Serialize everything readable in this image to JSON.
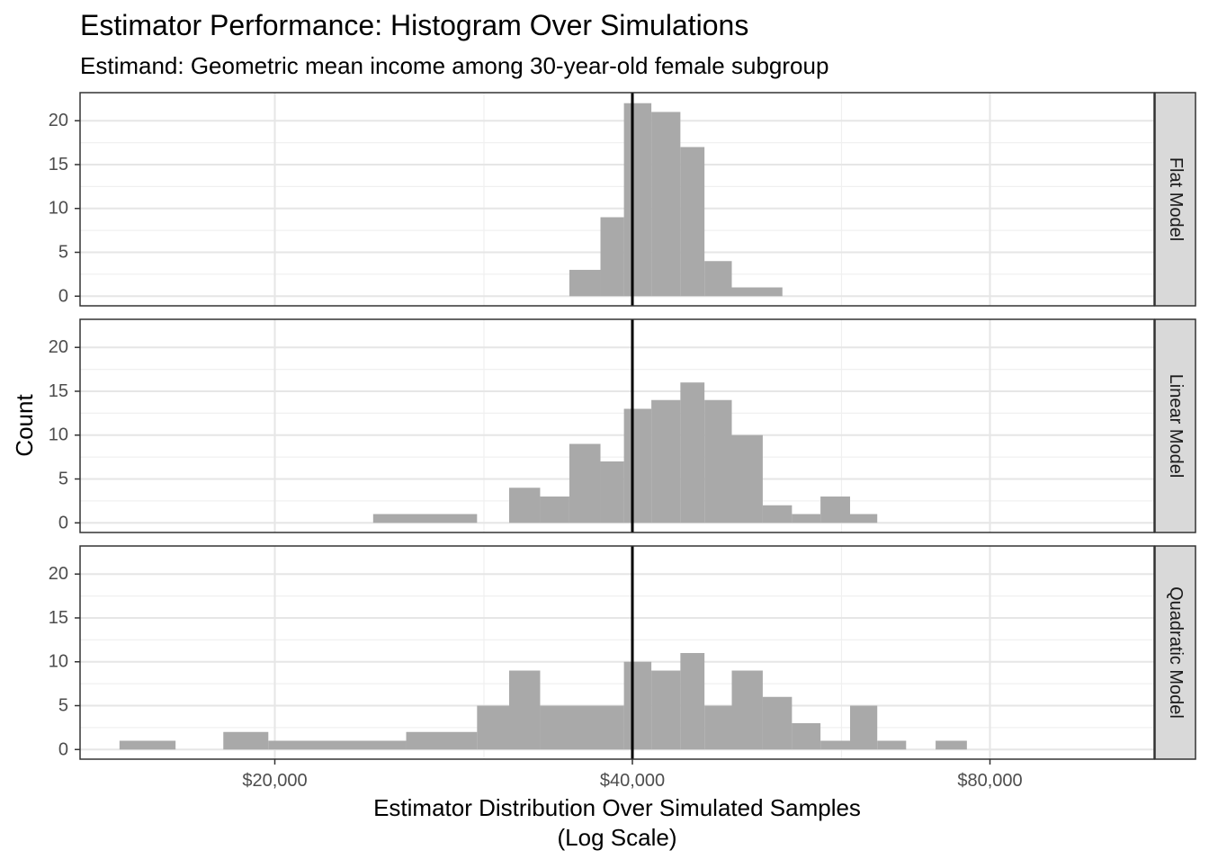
{
  "chart_data": {
    "type": "bar",
    "title": "Estimator Performance: Histogram Over Simulations",
    "subtitle": "Estimand: Geometric mean income among 30-year-old female subgroup",
    "xlabel_line1": "Estimator Distribution Over Simulated Samples",
    "xlabel_line2": "(Log Scale)",
    "ylabel": "Count",
    "x_scale": "log",
    "x_range": [
      10000,
      90000
    ],
    "y_range": [
      -1.1,
      23.2
    ],
    "x_ticks": [
      {
        "value": 20000,
        "label": "$20,000"
      },
      {
        "value": 40000,
        "label": "$40,000"
      },
      {
        "value": 80000,
        "label": "$80,000"
      }
    ],
    "x_minor_gridlines": [
      10000,
      30000,
      60000
    ],
    "y_ticks": [
      0,
      5,
      10,
      15,
      20
    ],
    "reference_line": {
      "x": 40000,
      "color": "#000000"
    },
    "bar_color": "#a9a9a9",
    "strip_color": "#d9d9d9",
    "grid": true,
    "panels": [
      {
        "label": "Flat Model",
        "bins": [
          {
            "x0": 35400,
            "x1": 37600,
            "count": 3
          },
          {
            "x0": 37600,
            "x1": 39350,
            "count": 9
          },
          {
            "x0": 39350,
            "x1": 41500,
            "count": 22
          },
          {
            "x0": 41500,
            "x1": 43900,
            "count": 21
          },
          {
            "x0": 43900,
            "x1": 46000,
            "count": 17
          },
          {
            "x0": 46000,
            "x1": 48500,
            "count": 4
          },
          {
            "x0": 48500,
            "x1": 53500,
            "count": 1
          }
        ]
      },
      {
        "label": "Linear Model",
        "bins": [
          {
            "x0": 24200,
            "x1": 29600,
            "count": 1
          },
          {
            "x0": 31500,
            "x1": 33450,
            "count": 4
          },
          {
            "x0": 33450,
            "x1": 35400,
            "count": 3
          },
          {
            "x0": 35400,
            "x1": 37600,
            "count": 9
          },
          {
            "x0": 37600,
            "x1": 39350,
            "count": 7
          },
          {
            "x0": 39350,
            "x1": 41500,
            "count": 13
          },
          {
            "x0": 41500,
            "x1": 43900,
            "count": 14
          },
          {
            "x0": 43900,
            "x1": 46000,
            "count": 16
          },
          {
            "x0": 46000,
            "x1": 48500,
            "count": 14
          },
          {
            "x0": 48500,
            "x1": 51500,
            "count": 10
          },
          {
            "x0": 51500,
            "x1": 54500,
            "count": 2
          },
          {
            "x0": 54500,
            "x1": 57600,
            "count": 1
          },
          {
            "x0": 57600,
            "x1": 61000,
            "count": 3
          },
          {
            "x0": 61000,
            "x1": 64300,
            "count": 1
          }
        ]
      },
      {
        "label": "Quadratic Model",
        "bins": [
          {
            "x0": 14800,
            "x1": 16500,
            "count": 1
          },
          {
            "x0": 18100,
            "x1": 19750,
            "count": 2
          },
          {
            "x0": 19750,
            "x1": 25800,
            "count": 1
          },
          {
            "x0": 25800,
            "x1": 29600,
            "count": 2
          },
          {
            "x0": 29600,
            "x1": 31500,
            "count": 5
          },
          {
            "x0": 31500,
            "x1": 33450,
            "count": 9
          },
          {
            "x0": 33450,
            "x1": 39350,
            "count": 5
          },
          {
            "x0": 39350,
            "x1": 41500,
            "count": 10
          },
          {
            "x0": 41500,
            "x1": 43900,
            "count": 9
          },
          {
            "x0": 43900,
            "x1": 46000,
            "count": 11
          },
          {
            "x0": 46000,
            "x1": 48500,
            "count": 5
          },
          {
            "x0": 48500,
            "x1": 51500,
            "count": 9
          },
          {
            "x0": 51500,
            "x1": 54500,
            "count": 6
          },
          {
            "x0": 54500,
            "x1": 57600,
            "count": 3
          },
          {
            "x0": 57600,
            "x1": 61000,
            "count": 1
          },
          {
            "x0": 61000,
            "x1": 64300,
            "count": 5
          },
          {
            "x0": 64300,
            "x1": 68000,
            "count": 1
          },
          {
            "x0": 72000,
            "x1": 76500,
            "count": 1
          }
        ]
      }
    ]
  }
}
